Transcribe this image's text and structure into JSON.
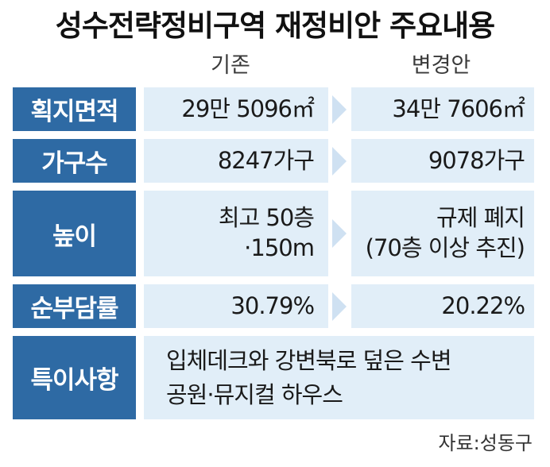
{
  "title": "성수전략정비구역 재정비안 주요내용",
  "columns": {
    "existing": "기존",
    "revised": "변경안"
  },
  "rows": [
    {
      "label": "획지면적",
      "existing": [
        "29만 5096㎡"
      ],
      "revised": [
        "34만 7606㎡"
      ]
    },
    {
      "label": "가구수",
      "existing": [
        "8247가구"
      ],
      "revised": [
        "9078가구"
      ]
    },
    {
      "label": "높이",
      "existing": [
        "최고 50층",
        "·150m"
      ],
      "revised": [
        "규제 폐지",
        "(70층 이상 추진)"
      ]
    },
    {
      "label": "순부담률",
      "existing": [
        "30.79%"
      ],
      "revised": [
        "20.22%"
      ]
    }
  ],
  "special": {
    "label": "특이사항",
    "lines": [
      "입체데크와 강변북로 덮은 수변",
      "공원·뮤지컬 하우스"
    ]
  },
  "source": "자료:성동구"
}
